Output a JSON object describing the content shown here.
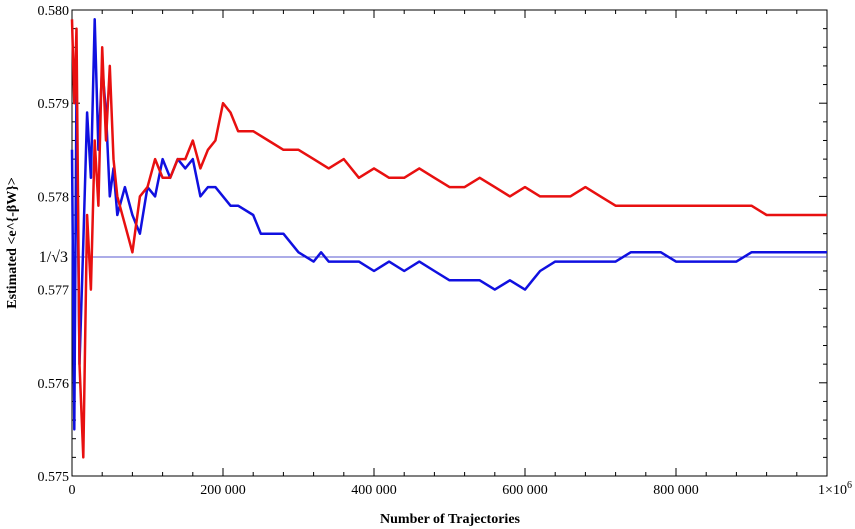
{
  "chart_data": {
    "type": "line",
    "xlabel": "Number of Trajectories",
    "ylabel": "Estimated <e^{-βW}>",
    "xlim": [
      0,
      1000000
    ],
    "ylim": [
      0.575,
      0.58
    ],
    "x_ticks": [
      {
        "value": 0,
        "label": "0"
      },
      {
        "value": 200000,
        "label": "200 000"
      },
      {
        "value": 400000,
        "label": "400 000"
      },
      {
        "value": 600000,
        "label": "600 000"
      },
      {
        "value": 800000,
        "label": "800 000"
      },
      {
        "value": 1000000,
        "label": "1×10",
        "exp": "6"
      }
    ],
    "y_ticks": [
      {
        "value": 0.575,
        "label": "0.575"
      },
      {
        "value": 0.576,
        "label": "0.576"
      },
      {
        "value": 0.577,
        "label": "0.577"
      },
      {
        "value": 0.578,
        "label": "0.578"
      },
      {
        "value": 0.579,
        "label": "0.579"
      },
      {
        "value": 0.58,
        "label": "0.580"
      }
    ],
    "reference_line": {
      "value": 0.57735,
      "label": "1/√3",
      "color": "#5a5ad2"
    },
    "series": [
      {
        "color": "#1010e0",
        "x": [
          0,
          3000,
          6000,
          10000,
          15000,
          20000,
          25000,
          30000,
          35000,
          40000,
          45000,
          50000,
          55000,
          60000,
          70000,
          80000,
          90000,
          100000,
          110000,
          120000,
          130000,
          140000,
          150000,
          160000,
          170000,
          180000,
          190000,
          200000,
          210000,
          220000,
          240000,
          250000,
          260000,
          280000,
          300000,
          320000,
          330000,
          340000,
          360000,
          380000,
          400000,
          420000,
          440000,
          460000,
          480000,
          500000,
          520000,
          540000,
          560000,
          580000,
          600000,
          610000,
          620000,
          640000,
          660000,
          680000,
          700000,
          720000,
          740000,
          760000,
          780000,
          800000,
          820000,
          840000,
          860000,
          880000,
          900000,
          920000,
          940000,
          960000,
          980000,
          1000000
        ],
        "y": [
          0.5785,
          0.5755,
          0.5792,
          0.5762,
          0.5775,
          0.5789,
          0.5782,
          0.5799,
          0.5785,
          0.5794,
          0.5789,
          0.578,
          0.5783,
          0.5778,
          0.5781,
          0.5778,
          0.5776,
          0.5781,
          0.578,
          0.5784,
          0.5782,
          0.5784,
          0.5783,
          0.5784,
          0.578,
          0.5781,
          0.5781,
          0.578,
          0.5779,
          0.5779,
          0.5778,
          0.5776,
          0.5776,
          0.5776,
          0.5774,
          0.5773,
          0.5774,
          0.5773,
          0.5773,
          0.5773,
          0.5772,
          0.5773,
          0.5772,
          0.5773,
          0.5772,
          0.5771,
          0.5771,
          0.5771,
          0.577,
          0.5771,
          0.577,
          0.5771,
          0.5772,
          0.5773,
          0.5773,
          0.5773,
          0.5773,
          0.5773,
          0.5774,
          0.5774,
          0.5774,
          0.5773,
          0.5773,
          0.5773,
          0.5773,
          0.5773,
          0.5774,
          0.5774,
          0.5774,
          0.5774,
          0.5774,
          0.5774
        ]
      },
      {
        "color": "#e81010",
        "x": [
          0,
          3000,
          6000,
          10000,
          15000,
          20000,
          25000,
          30000,
          35000,
          40000,
          45000,
          50000,
          55000,
          60000,
          70000,
          80000,
          90000,
          100000,
          110000,
          120000,
          130000,
          140000,
          150000,
          160000,
          170000,
          180000,
          190000,
          200000,
          210000,
          220000,
          240000,
          260000,
          280000,
          300000,
          320000,
          340000,
          360000,
          380000,
          400000,
          420000,
          440000,
          460000,
          480000,
          500000,
          520000,
          540000,
          560000,
          580000,
          600000,
          620000,
          640000,
          660000,
          680000,
          700000,
          720000,
          740000,
          760000,
          780000,
          800000,
          820000,
          840000,
          860000,
          880000,
          900000,
          920000,
          940000,
          960000,
          980000,
          1000000
        ],
        "y": [
          0.5799,
          0.579,
          0.5798,
          0.5762,
          0.5752,
          0.5778,
          0.577,
          0.5786,
          0.5779,
          0.5796,
          0.5786,
          0.5794,
          0.5784,
          0.578,
          0.5777,
          0.5774,
          0.578,
          0.5781,
          0.5784,
          0.5782,
          0.5782,
          0.5784,
          0.5784,
          0.5786,
          0.5783,
          0.5785,
          0.5786,
          0.579,
          0.5789,
          0.5787,
          0.5787,
          0.5786,
          0.5785,
          0.5785,
          0.5784,
          0.5783,
          0.5784,
          0.5782,
          0.5783,
          0.5782,
          0.5782,
          0.5783,
          0.5782,
          0.5781,
          0.5781,
          0.5782,
          0.5781,
          0.578,
          0.5781,
          0.578,
          0.578,
          0.578,
          0.5781,
          0.578,
          0.5779,
          0.5779,
          0.5779,
          0.5779,
          0.5779,
          0.5779,
          0.5779,
          0.5779,
          0.5779,
          0.5779,
          0.5778,
          0.5778,
          0.5778,
          0.5778,
          0.5778
        ]
      }
    ]
  }
}
